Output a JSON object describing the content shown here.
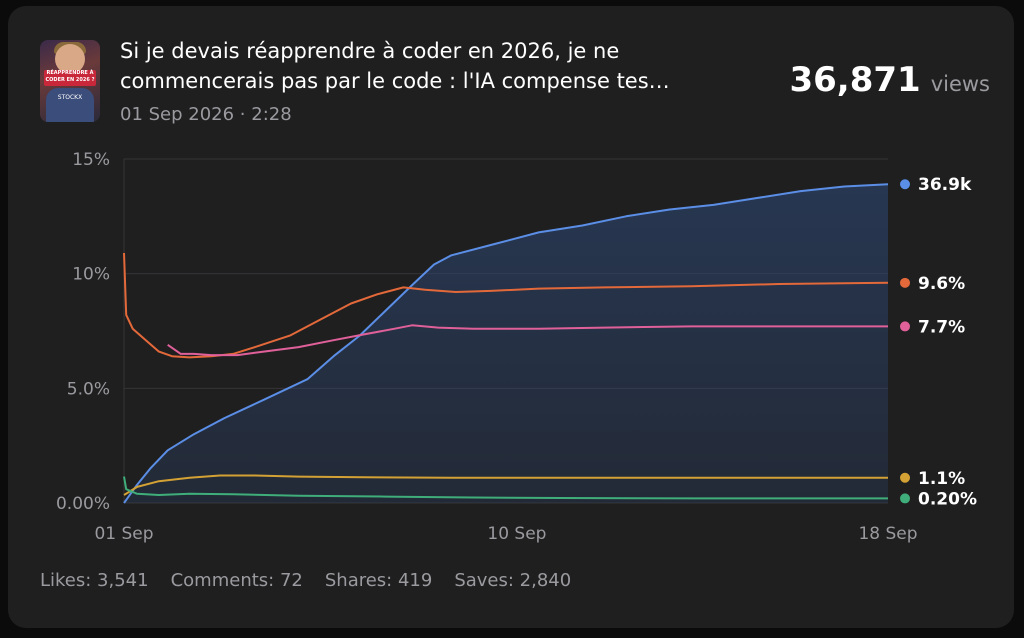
{
  "video": {
    "title": "Si je devais réapprendre à coder en 2026, je ne\ncommencerais pas par le code : l'IA compense tes…",
    "subtitle": "01 Sep 2026 · 2:28",
    "views_count": "36,871",
    "views_label": "views",
    "thumbnail_banner": "RÉAPPRENDRE À CODER EN 2026 ?",
    "thumbnail_shirt": "STOCKX"
  },
  "stats": {
    "likes": "Likes: 3,541",
    "comments": "Comments: 72",
    "shares": "Shares: 419",
    "saves": "Saves: 2,840"
  },
  "chart_data": {
    "type": "line",
    "x_ticks": [
      "01 Sep",
      "10 Sep",
      "18 Sep"
    ],
    "y_ticks": [
      "0.00%",
      "5.0%",
      "10%",
      "15%"
    ],
    "ylim": [
      0,
      15
    ],
    "xlim": [
      1,
      18.5
    ],
    "grid": true,
    "series": [
      {
        "label": "36.9k",
        "color": "#5b8ee6",
        "fill": true,
        "points": [
          [
            1,
            0
          ],
          [
            1.3,
            0.8
          ],
          [
            1.6,
            1.5
          ],
          [
            2,
            2.3
          ],
          [
            2.6,
            3
          ],
          [
            3.3,
            3.7
          ],
          [
            4.2,
            4.5
          ],
          [
            5.2,
            5.4
          ],
          [
            5.8,
            6.4
          ],
          [
            6.4,
            7.3
          ],
          [
            7,
            8.4
          ],
          [
            7.6,
            9.5
          ],
          [
            8.1,
            10.4
          ],
          [
            8.5,
            10.8
          ],
          [
            9.5,
            11.3
          ],
          [
            10.5,
            11.8
          ],
          [
            11.5,
            12.1
          ],
          [
            12.5,
            12.5
          ],
          [
            13.5,
            12.8
          ],
          [
            14.5,
            13.0
          ],
          [
            15.5,
            13.3
          ],
          [
            16.5,
            13.6
          ],
          [
            17.5,
            13.8
          ],
          [
            18.5,
            13.9
          ]
        ]
      },
      {
        "label": "9.6%",
        "color": "#e3693a",
        "points": [
          [
            1,
            10.9
          ],
          [
            1.05,
            8.2
          ],
          [
            1.2,
            7.6
          ],
          [
            1.5,
            7.1
          ],
          [
            1.8,
            6.6
          ],
          [
            2.1,
            6.4
          ],
          [
            2.5,
            6.35
          ],
          [
            3,
            6.4
          ],
          [
            3.5,
            6.5
          ],
          [
            4,
            6.8
          ],
          [
            4.8,
            7.3
          ],
          [
            5.5,
            8.0
          ],
          [
            6.2,
            8.7
          ],
          [
            6.8,
            9.1
          ],
          [
            7.4,
            9.4
          ],
          [
            7.9,
            9.3
          ],
          [
            8.6,
            9.2
          ],
          [
            9.4,
            9.25
          ],
          [
            10.5,
            9.35
          ],
          [
            12,
            9.4
          ],
          [
            14,
            9.45
          ],
          [
            16,
            9.55
          ],
          [
            18.5,
            9.6
          ]
        ]
      },
      {
        "label": "7.7%",
        "color": "#e0609a",
        "points": [
          [
            2,
            6.9
          ],
          [
            2.3,
            6.5
          ],
          [
            2.6,
            6.5
          ],
          [
            3,
            6.45
          ],
          [
            3.6,
            6.45
          ],
          [
            4.2,
            6.6
          ],
          [
            5,
            6.8
          ],
          [
            5.8,
            7.1
          ],
          [
            6.5,
            7.35
          ],
          [
            7.2,
            7.6
          ],
          [
            7.6,
            7.75
          ],
          [
            8.2,
            7.65
          ],
          [
            9,
            7.6
          ],
          [
            10.5,
            7.6
          ],
          [
            12,
            7.65
          ],
          [
            14,
            7.7
          ],
          [
            16,
            7.7
          ],
          [
            18.5,
            7.7
          ]
        ]
      },
      {
        "label": "1.1%",
        "color": "#d4a234",
        "points": [
          [
            1,
            0.35
          ],
          [
            1.3,
            0.7
          ],
          [
            1.8,
            0.95
          ],
          [
            2.5,
            1.1
          ],
          [
            3.2,
            1.2
          ],
          [
            4,
            1.2
          ],
          [
            5,
            1.15
          ],
          [
            6.5,
            1.12
          ],
          [
            8.5,
            1.1
          ],
          [
            10.5,
            1.1
          ],
          [
            13,
            1.1
          ],
          [
            16,
            1.1
          ],
          [
            18.5,
            1.1
          ]
        ]
      },
      {
        "label": "0.20%",
        "color": "#3fae7a",
        "points": [
          [
            1,
            1.15
          ],
          [
            1.05,
            0.6
          ],
          [
            1.3,
            0.4
          ],
          [
            1.8,
            0.35
          ],
          [
            2.5,
            0.4
          ],
          [
            3.5,
            0.38
          ],
          [
            5,
            0.32
          ],
          [
            7,
            0.28
          ],
          [
            9,
            0.24
          ],
          [
            11,
            0.22
          ],
          [
            14,
            0.2
          ],
          [
            16,
            0.2
          ],
          [
            18.5,
            0.2
          ]
        ]
      }
    ]
  }
}
